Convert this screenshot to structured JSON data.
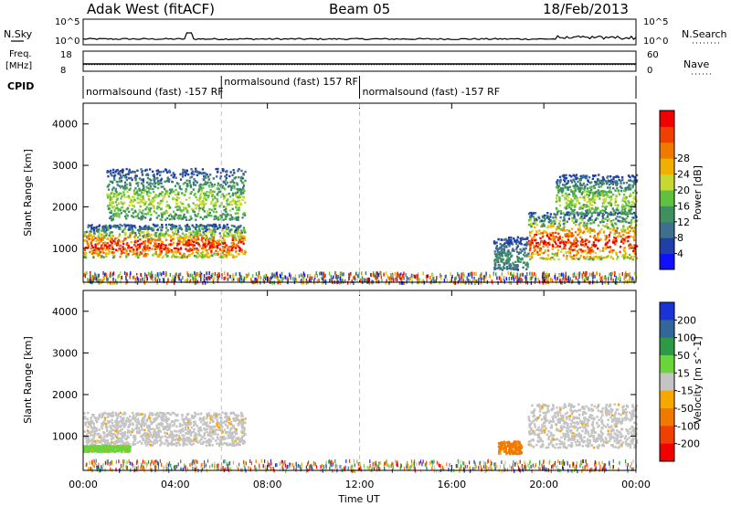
{
  "header": {
    "station": "Adak West (fitACF)",
    "beam": "Beam 05",
    "date": "18/Feb/2013"
  },
  "strip_labels": {
    "nsky": "N.Sky",
    "freq_line1": "Freq.",
    "freq_line2": "[MHz]",
    "cpid": "CPID",
    "nsearch": "N.Search",
    "nave": "Nave",
    "nsky_ticks": [
      "10^5",
      "10^0"
    ],
    "nsearch_ticks": [
      "10^5",
      "10^0"
    ],
    "freq_ticks": [
      "18",
      "8"
    ],
    "nave_ticks": [
      "60",
      "0"
    ]
  },
  "cpid_segments": [
    {
      "label": "normalsound (fast) -157 RF",
      "start_hour": 0.0,
      "end_hour": 6.0
    },
    {
      "label": "normalsound (fast) 157 RF",
      "start_hour": 6.0,
      "end_hour": 12.0
    },
    {
      "label": "normalsound (fast) -157 RF",
      "start_hour": 12.0,
      "end_hour": 24.0
    }
  ],
  "chart_data": [
    {
      "type": "heatmap",
      "parameter": "Power",
      "ylabel": "Slant Range [km]",
      "xlabel": "",
      "colorbar_label": "Power [dB]",
      "colorbar_ticks": [
        4,
        8,
        12,
        16,
        20,
        24,
        28
      ],
      "colorbar_colors": [
        "#1010ff",
        "#2040a8",
        "#3e6f8c",
        "#3f9060",
        "#60c040",
        "#c8d832",
        "#f0b000",
        "#f07a00",
        "#f04000",
        "#f00000"
      ],
      "xlim": [
        0,
        24
      ],
      "ylim": [
        180,
        4500
      ],
      "yticks": [
        1000,
        2000,
        3000,
        4000
      ],
      "features": [
        {
          "from_hour": 0.0,
          "to_hour": 7.0,
          "range_km": [
            800,
            1600
          ],
          "power_db": [
            4,
            28
          ]
        },
        {
          "from_hour": 1.0,
          "to_hour": 7.0,
          "range_km": [
            1700,
            2950
          ],
          "power_db": [
            4,
            16
          ]
        },
        {
          "from_hour": 17.8,
          "to_hour": 19.3,
          "range_km": [
            500,
            1300
          ],
          "power_db": [
            4,
            12
          ]
        },
        {
          "from_hour": 19.3,
          "to_hour": 24.0,
          "range_km": [
            750,
            1900
          ],
          "power_db": [
            4,
            28
          ]
        },
        {
          "from_hour": 20.5,
          "to_hour": 24.0,
          "range_km": [
            1850,
            2800
          ],
          "power_db": [
            4,
            16
          ]
        },
        {
          "from_hour": 0.0,
          "to_hour": 24.0,
          "range_km": [
            200,
            450
          ],
          "power_db": [
            4,
            28
          ]
        }
      ]
    },
    {
      "type": "heatmap",
      "parameter": "Velocity",
      "ylabel": "Slant Range [km]",
      "xlabel": "Time UT",
      "colorbar_label": "Velocity [m s^-1]",
      "colorbar_ticks": [
        200,
        100,
        50,
        15,
        -15,
        -50,
        -100,
        -200
      ],
      "colorbar_colors": [
        "#1a33d4",
        "#336699",
        "#2e9a44",
        "#6bd43a",
        "#c4c4c4",
        "#f7a800",
        "#f07a00",
        "#f04000",
        "#f00000"
      ],
      "xlim": [
        0,
        24
      ],
      "ylim": [
        180,
        4500
      ],
      "yticks": [
        1000,
        2000,
        3000,
        4000
      ],
      "xticks": [
        "00:00",
        "04:00",
        "08:00",
        "12:00",
        "16:00",
        "20:00",
        "00:00"
      ],
      "features": [
        {
          "from_hour": 0.0,
          "to_hour": 7.0,
          "range_km": [
            800,
            1600
          ],
          "velocity": [
            -15,
            15
          ]
        },
        {
          "from_hour": 0.0,
          "to_hour": 2.0,
          "range_km": [
            650,
            800
          ],
          "velocity": [
            15,
            50
          ]
        },
        {
          "from_hour": 19.3,
          "to_hour": 24.0,
          "range_km": [
            750,
            1800
          ],
          "velocity": [
            -15,
            15
          ]
        },
        {
          "from_hour": 18.0,
          "to_hour": 19.0,
          "range_km": [
            600,
            900
          ],
          "velocity": [
            -100,
            -50
          ]
        }
      ]
    }
  ]
}
